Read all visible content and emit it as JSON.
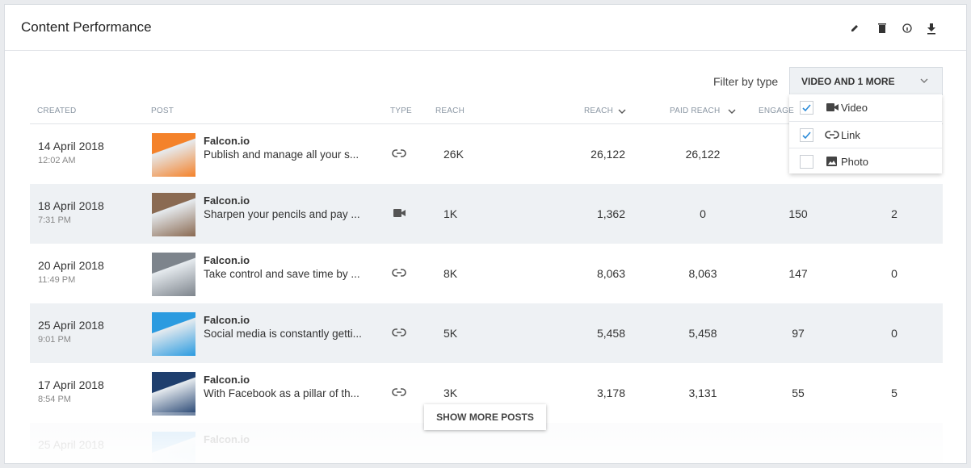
{
  "header": {
    "title": "Content Performance"
  },
  "filter": {
    "label": "Filter by type",
    "button": "VIDEO AND 1 MORE",
    "options": [
      {
        "label": "Video",
        "checked": true,
        "icon": "video"
      },
      {
        "label": "Link",
        "checked": true,
        "icon": "link"
      },
      {
        "label": "Photo",
        "checked": false,
        "icon": "photo"
      }
    ]
  },
  "table": {
    "columns": {
      "created": "CREATED",
      "post": "POST",
      "type": "TYPE",
      "reach_short": "REACH",
      "reach": "REACH",
      "paid_reach": "PAID REACH",
      "engagement": "ENGAGE"
    },
    "rows": [
      {
        "created": "14 April 2018",
        "time": "12:02 AM",
        "brand": "Falcon.io",
        "text": "Publish and manage all your s...",
        "type": "link",
        "reach_short": "26K",
        "reach": "26,122",
        "paid_reach": "26,122",
        "thumb": "#f4822a"
      },
      {
        "created": "18 April 2018",
        "time": "7:31 PM",
        "brand": "Falcon.io",
        "text": "Sharpen your pencils and pay ...",
        "type": "video",
        "reach_short": "1K",
        "reach": "1,362",
        "paid_reach": "0",
        "engagement": "150",
        "other": "2",
        "thumb": "#8a6a52"
      },
      {
        "created": "20 April 2018",
        "time": "11:49 PM",
        "brand": "Falcon.io",
        "text": "Take control and save time by ...",
        "type": "link",
        "reach_short": "8K",
        "reach": "8,063",
        "paid_reach": "8,063",
        "engagement": "147",
        "other": "0",
        "thumb": "#7d848c"
      },
      {
        "created": "25 April 2018",
        "time": "9:01 PM",
        "brand": "Falcon.io",
        "text": "Social media is constantly getti...",
        "type": "link",
        "reach_short": "5K",
        "reach": "5,458",
        "paid_reach": "5,458",
        "engagement": "97",
        "other": "0",
        "thumb": "#2b9be0"
      },
      {
        "created": "17 April 2018",
        "time": "8:54 PM",
        "brand": "Falcon.io",
        "text": "With Facebook as a pillar of th...",
        "type": "link",
        "reach_short": "3K",
        "reach": "3,178",
        "paid_reach": "3,131",
        "engagement": "55",
        "other": "5",
        "thumb": "#1f3f6e"
      },
      {
        "created": "25 April 2018",
        "brand": "Falcon.io",
        "thumb": "#6fb4e6",
        "faded": true
      }
    ]
  },
  "more_button": "SHOW MORE POSTS"
}
